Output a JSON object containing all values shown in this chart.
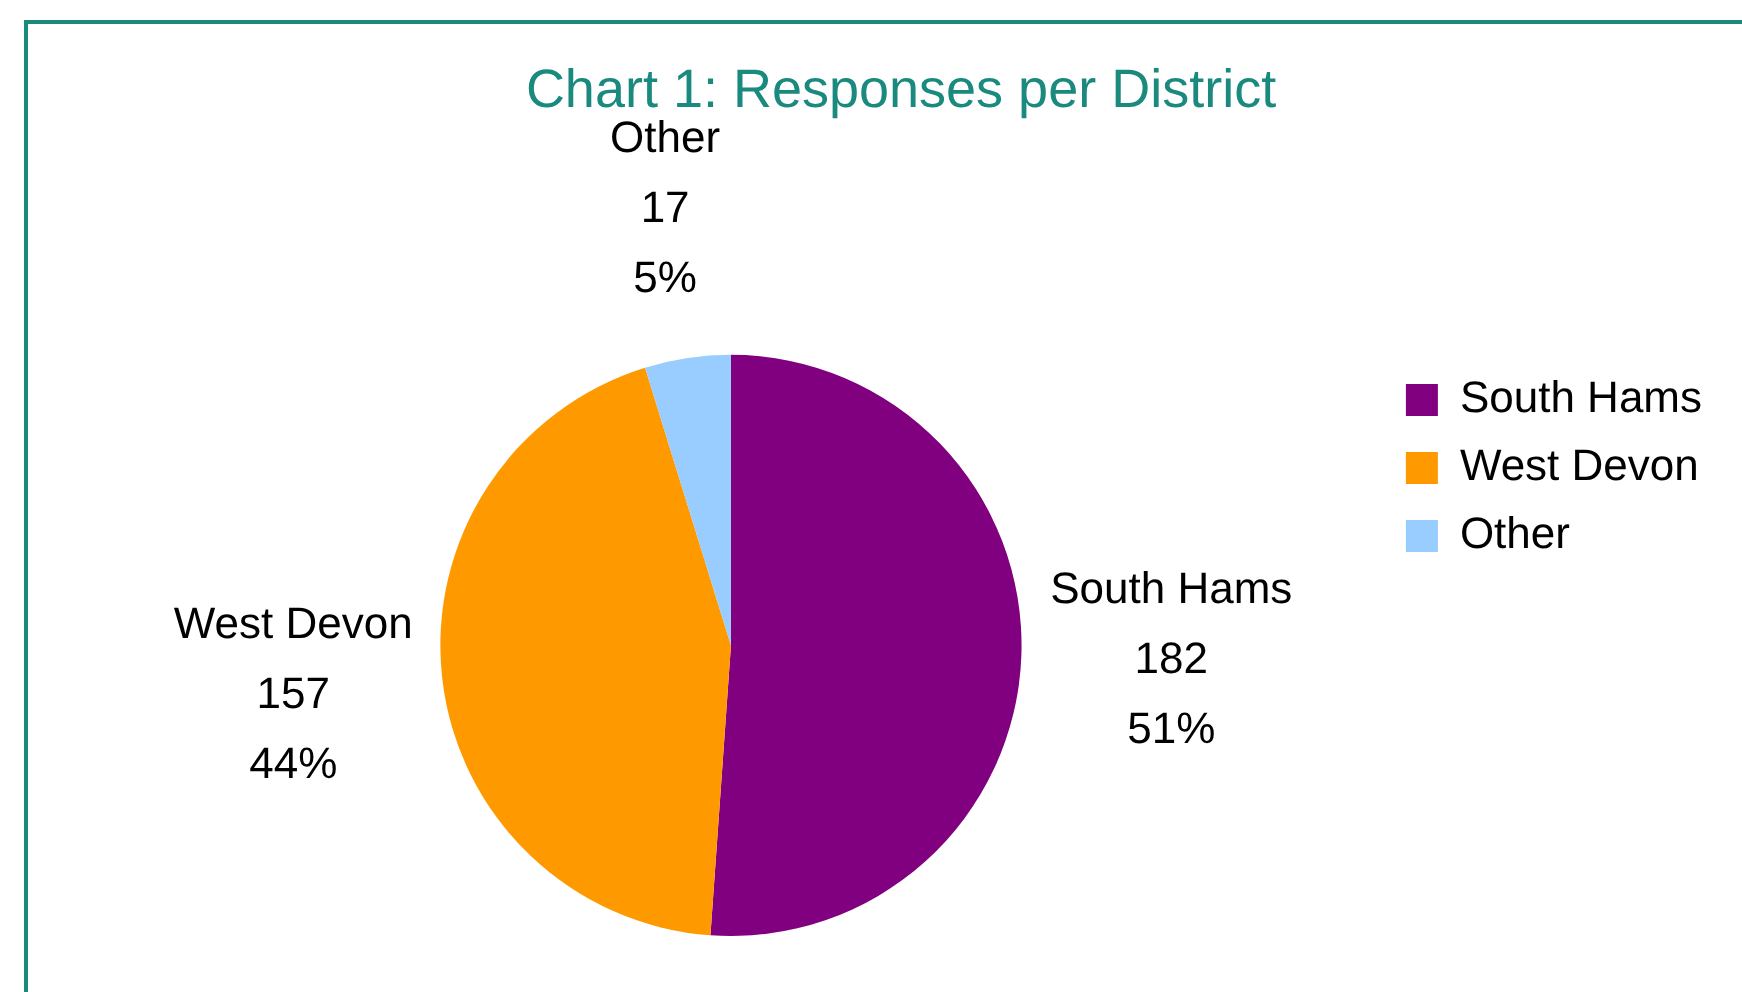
{
  "chart_data": {
    "type": "pie",
    "title": "Chart 1: Responses per District",
    "categories": [
      "South Hams",
      "West Devon",
      "Other"
    ],
    "values": [
      182,
      157,
      17
    ],
    "colors": [
      "#800080",
      "#ff9900",
      "#99ccff"
    ],
    "value_labels": [
      "182\n51%",
      "157\n44%",
      "17\n5%"
    ],
    "legend": "right"
  }
}
